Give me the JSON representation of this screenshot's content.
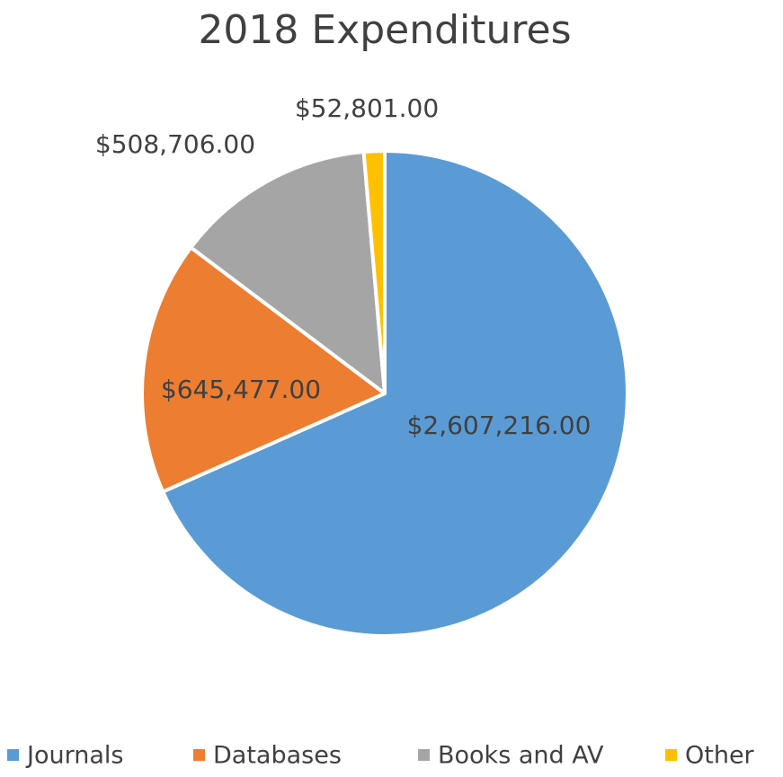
{
  "chart_data": {
    "type": "pie",
    "title": "2018 Expenditures",
    "categories": [
      "Journals",
      "Databases",
      "Books and AV",
      "Other"
    ],
    "values": [
      2607216,
      645477,
      508706,
      52801
    ],
    "value_labels": [
      "$2,607,216.00",
      "$645,477.00",
      "$508,706.00",
      "$52,801.00"
    ],
    "colors": [
      "#5b9bd5",
      "#ed7d31",
      "#a5a5a5",
      "#ffc000"
    ],
    "legend": "bottom"
  }
}
